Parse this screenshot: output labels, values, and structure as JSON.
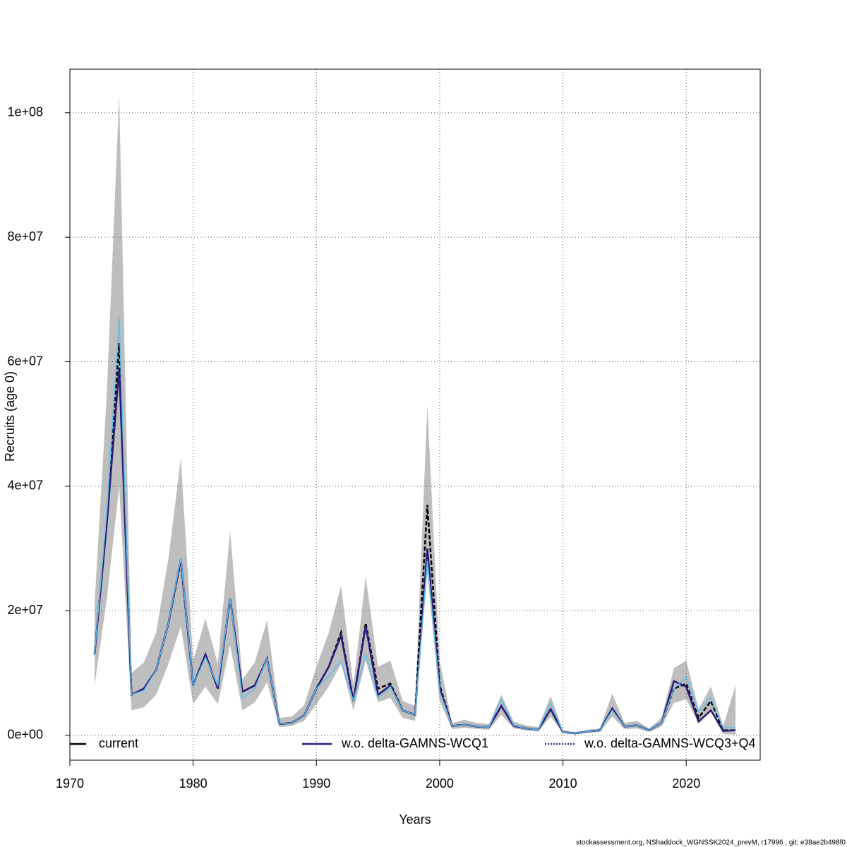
{
  "chart_data": {
    "type": "line",
    "x_label": "Years",
    "y_label": "Recruits (age 0)",
    "footer": "stockassessment.org, NShaddock_WGNSSK2024_prevM, r17996 , git: e38ae2b498f0",
    "x": [
      1972,
      1973,
      1974,
      1975,
      1976,
      1977,
      1978,
      1979,
      1980,
      1981,
      1982,
      1983,
      1984,
      1985,
      1986,
      1987,
      1988,
      1989,
      1990,
      1991,
      1992,
      1993,
      1994,
      1995,
      1996,
      1997,
      1998,
      1999,
      2000,
      2001,
      2002,
      2003,
      2004,
      2005,
      2006,
      2007,
      2008,
      2009,
      2010,
      2011,
      2012,
      2013,
      2014,
      2015,
      2016,
      2017,
      2018,
      2019,
      2020,
      2021,
      2022,
      2023,
      2024
    ],
    "band_color": "#bebebe",
    "series": [
      {
        "name": "current",
        "color": "#000000",
        "values": [
          13000000.0,
          35000000.0,
          63000000.0,
          6500000.0,
          7500000.0,
          10500000.0,
          18000000.0,
          28000000.0,
          8000000.0,
          13000000.0,
          7500000.0,
          22000000.0,
          7000000.0,
          8000000.0,
          12300000.0,
          1800000.0,
          2000000.0,
          3200000.0,
          7500000.0,
          11000000.0,
          16500000.0,
          5500000.0,
          18000000.0,
          7500000.0,
          8300000.0,
          4000000.0,
          3300000.0,
          37000000.0,
          8000000.0,
          1500000.0,
          1700000.0,
          1400000.0,
          1300000.0,
          4700000.0,
          1600000.0,
          1100000.0,
          900000.0,
          4200000.0,
          500000.0,
          300000.0,
          600000.0,
          800000.0,
          4300000.0,
          1400000.0,
          1600000.0,
          800000.0,
          2000000.0,
          7500000.0,
          8300000.0,
          2800000.0,
          5500000.0,
          800000.0,
          800000.0
        ],
        "lower": [
          8000000.0,
          22000000.0,
          40000000.0,
          4000000.0,
          4500000.0,
          6500000.0,
          11500000.0,
          17500000.0,
          5000000.0,
          7800000.0,
          5000000.0,
          14500000.0,
          4000000.0,
          5300000.0,
          8500000.0,
          1300000.0,
          1500000.0,
          2300000.0,
          5000000.0,
          7800000.0,
          11500000.0,
          4000000.0,
          12000000.0,
          5300000.0,
          6000000.0,
          2800000.0,
          2300000.0,
          26000000.0,
          5500000.0,
          1000000.0,
          1200000.0,
          1000000.0,
          900000.0,
          3300000.0,
          1100000.0,
          800000.0,
          600000.0,
          3000000.0,
          350000.0,
          200000.0,
          400000.0,
          550000.0,
          3000000.0,
          1000000.0,
          1100000.0,
          550000.0,
          1400000.0,
          5200000.0,
          5800000.0,
          1900000.0,
          3800000.0,
          200000.0,
          100000.0
        ],
        "upper": [
          21000000.0,
          55000000.0,
          103000000.0,
          10000000.0,
          11700000.0,
          16500000.0,
          28500000.0,
          44500000.0,
          12000000.0,
          18700000.0,
          11500000.0,
          32800000.0,
          9000000.0,
          11700000.0,
          18500000.0,
          2800000.0,
          3000000.0,
          4800000.0,
          11000000.0,
          16500000.0,
          24000000.0,
          8000000.0,
          25500000.0,
          11000000.0,
          12000000.0,
          5500000.0,
          4700000.0,
          53000000.0,
          12000000.0,
          2000000.0,
          2500000.0,
          2000000.0,
          1800000.0,
          6500000.0,
          2200000.0,
          1600000.0,
          1300000.0,
          6300000.0,
          800000.0,
          500000.0,
          900000.0,
          1100000.0,
          6700000.0,
          2000000.0,
          2300000.0,
          1100000.0,
          2800000.0,
          10800000.0,
          12000000.0,
          4200000.0,
          7800000.0,
          1500000.0,
          8000000.0
        ]
      },
      {
        "name": "w.o. delta-GAMNS-WCQ1",
        "color": "#2e1a78",
        "values": [
          13000000.0,
          34000000.0,
          59000000.0,
          6500000.0,
          7500000.0,
          10500000.0,
          18000000.0,
          28300000.0,
          8000000.0,
          13000000.0,
          7500000.0,
          22000000.0,
          7000000.0,
          8000000.0,
          12300000.0,
          1800000.0,
          2000000.0,
          3200000.0,
          7500000.0,
          11000000.0,
          16000000.0,
          5500000.0,
          17500000.0,
          6500000.0,
          8000000.0,
          4000000.0,
          3300000.0,
          30000000.0,
          7500000.0,
          1500000.0,
          1700000.0,
          1400000.0,
          1300000.0,
          4700000.0,
          1500000.0,
          1100000.0,
          900000.0,
          4200000.0,
          500000.0,
          300000.0,
          600000.0,
          800000.0,
          4300000.0,
          1400000.0,
          1600000.0,
          800000.0,
          2000000.0,
          8700000.0,
          7800000.0,
          2200000.0,
          4000000.0,
          700000.0,
          800000.0
        ]
      },
      {
        "name": "w.o. delta-GAMNS-WCQ3+Q4",
        "color": "#5bc0eb",
        "values": [
          13000000.0,
          36000000.0,
          67000000.0,
          6500000.0,
          7200000.0,
          10500000.0,
          18000000.0,
          28500000.0,
          8000000.0,
          12500000.0,
          8000000.0,
          22000000.0,
          6000000.0,
          7500000.0,
          12300000.0,
          1800000.0,
          2000000.0,
          3200000.0,
          7500000.0,
          9500000.0,
          12000000.0,
          5500000.0,
          13000000.0,
          6000000.0,
          7800000.0,
          4000000.0,
          3300000.0,
          28000000.0,
          7000000.0,
          1500000.0,
          1700000.0,
          1400000.0,
          1300000.0,
          5800000.0,
          1600000.0,
          1100000.0,
          900000.0,
          5200000.0,
          500000.0,
          300000.0,
          600000.0,
          800000.0,
          4000000.0,
          1400000.0,
          1600000.0,
          800000.0,
          2000000.0,
          7500000.0,
          9300000.0,
          3800000.0,
          6000000.0,
          1200000.0,
          1200000.0
        ]
      }
    ],
    "xlim": [
      1970,
      2026
    ],
    "xticks": [
      1970,
      1980,
      1990,
      2000,
      2010,
      2020
    ],
    "ylim": [
      -4000000.0,
      107000000.0
    ],
    "yticks": [
      {
        "value": 0,
        "label": "0e+00"
      },
      {
        "value": 20000000.0,
        "label": "2e+07"
      },
      {
        "value": 40000000.0,
        "label": "4e+07"
      },
      {
        "value": 60000000.0,
        "label": "6e+07"
      },
      {
        "value": 80000000.0,
        "label": "8e+07"
      },
      {
        "value": 100000000.0,
        "label": "1e+08"
      }
    ],
    "grid": true,
    "legend": "bottom"
  }
}
